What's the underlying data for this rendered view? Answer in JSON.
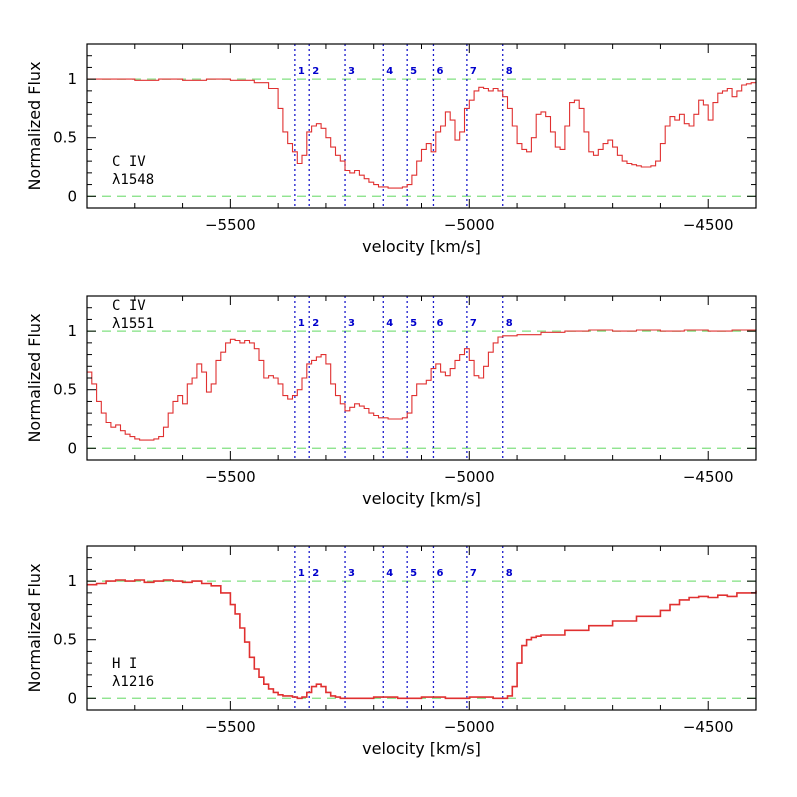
{
  "colors": {
    "flux": "#e03030",
    "reference": "#80e080",
    "components": "#1a1acc",
    "axes": "#000000"
  },
  "chart_data": [
    {
      "type": "line",
      "panel": "C IV 1548",
      "ion": "C IV",
      "line_label": "λ1548",
      "xlabel": "velocity [km/s]",
      "ylabel": "Normalized Flux",
      "xlim": [
        -5800,
        -4400
      ],
      "ylim": [
        -0.1,
        1.3
      ],
      "xticks": [
        -5500,
        -5000,
        -4500
      ],
      "yticks": [
        0,
        0.5,
        1
      ],
      "reference_levels": [
        0,
        1
      ],
      "components": [
        {
          "label": "1",
          "v": -5365
        },
        {
          "label": "2",
          "v": -5335
        },
        {
          "label": "3",
          "v": -5260
        },
        {
          "label": "4",
          "v": -5180
        },
        {
          "label": "5",
          "v": -5130
        },
        {
          "label": "6",
          "v": -5075
        },
        {
          "label": "7",
          "v": -5005
        },
        {
          "label": "8",
          "v": -4930
        }
      ],
      "x": [
        -5800,
        -5750,
        -5700,
        -5650,
        -5600,
        -5550,
        -5500,
        -5450,
        -5420,
        -5400,
        -5390,
        -5380,
        -5370,
        -5360,
        -5350,
        -5340,
        -5330,
        -5320,
        -5310,
        -5300,
        -5290,
        -5280,
        -5270,
        -5260,
        -5250,
        -5240,
        -5230,
        -5220,
        -5210,
        -5200,
        -5190,
        -5180,
        -5170,
        -5160,
        -5150,
        -5140,
        -5130,
        -5120,
        -5110,
        -5100,
        -5090,
        -5080,
        -5070,
        -5060,
        -5050,
        -5040,
        -5030,
        -5020,
        -5010,
        -5000,
        -4990,
        -4980,
        -4970,
        -4960,
        -4950,
        -4940,
        -4930,
        -4920,
        -4910,
        -4900,
        -4890,
        -4880,
        -4870,
        -4860,
        -4850,
        -4840,
        -4830,
        -4820,
        -4810,
        -4800,
        -4790,
        -4780,
        -4770,
        -4760,
        -4750,
        -4740,
        -4730,
        -4720,
        -4710,
        -4700,
        -4690,
        -4680,
        -4670,
        -4660,
        -4650,
        -4640,
        -4630,
        -4620,
        -4610,
        -4600,
        -4590,
        -4580,
        -4570,
        -4560,
        -4550,
        -4540,
        -4530,
        -4520,
        -4510,
        -4500,
        -4490,
        -4480,
        -4470,
        -4460,
        -4450,
        -4440,
        -4430,
        -4420,
        -4410,
        -4400
      ],
      "y": [
        1.0,
        1.0,
        0.99,
        1.0,
        0.99,
        1.0,
        0.99,
        0.97,
        0.92,
        0.75,
        0.55,
        0.45,
        0.38,
        0.28,
        0.35,
        0.55,
        0.6,
        0.62,
        0.58,
        0.5,
        0.42,
        0.35,
        0.3,
        0.22,
        0.2,
        0.22,
        0.18,
        0.15,
        0.12,
        0.1,
        0.08,
        0.08,
        0.07,
        0.07,
        0.07,
        0.08,
        0.1,
        0.18,
        0.3,
        0.4,
        0.45,
        0.38,
        0.55,
        0.6,
        0.72,
        0.65,
        0.48,
        0.55,
        0.75,
        0.82,
        0.9,
        0.93,
        0.92,
        0.9,
        0.92,
        0.9,
        0.85,
        0.75,
        0.6,
        0.45,
        0.4,
        0.38,
        0.5,
        0.7,
        0.72,
        0.68,
        0.55,
        0.42,
        0.4,
        0.6,
        0.8,
        0.82,
        0.75,
        0.55,
        0.38,
        0.35,
        0.4,
        0.45,
        0.48,
        0.42,
        0.35,
        0.3,
        0.28,
        0.27,
        0.26,
        0.25,
        0.25,
        0.26,
        0.3,
        0.45,
        0.6,
        0.68,
        0.65,
        0.7,
        0.62,
        0.6,
        0.7,
        0.82,
        0.78,
        0.65,
        0.8,
        0.88,
        0.9,
        0.92,
        0.85,
        0.9,
        0.95,
        0.96,
        0.97,
        0.98
      ]
    },
    {
      "type": "line",
      "panel": "C IV 1551",
      "ion": "C IV",
      "line_label": "λ1551",
      "xlabel": "velocity [km/s]",
      "ylabel": "Normalized Flux",
      "xlim": [
        -5800,
        -4400
      ],
      "ylim": [
        -0.1,
        1.3
      ],
      "xticks": [
        -5500,
        -5000,
        -4500
      ],
      "yticks": [
        0,
        0.5,
        1
      ],
      "reference_levels": [
        0,
        1
      ],
      "components": [
        {
          "label": "1",
          "v": -5365
        },
        {
          "label": "2",
          "v": -5335
        },
        {
          "label": "3",
          "v": -5260
        },
        {
          "label": "4",
          "v": -5180
        },
        {
          "label": "5",
          "v": -5130
        },
        {
          "label": "6",
          "v": -5075
        },
        {
          "label": "7",
          "v": -5005
        },
        {
          "label": "8",
          "v": -4930
        }
      ],
      "x": [
        -5800,
        -5790,
        -5780,
        -5770,
        -5760,
        -5750,
        -5740,
        -5730,
        -5720,
        -5710,
        -5700,
        -5690,
        -5680,
        -5670,
        -5660,
        -5650,
        -5640,
        -5630,
        -5620,
        -5610,
        -5600,
        -5590,
        -5580,
        -5570,
        -5560,
        -5550,
        -5540,
        -5530,
        -5520,
        -5510,
        -5500,
        -5490,
        -5480,
        -5470,
        -5460,
        -5450,
        -5440,
        -5430,
        -5420,
        -5410,
        -5400,
        -5390,
        -5380,
        -5370,
        -5360,
        -5350,
        -5340,
        -5330,
        -5320,
        -5310,
        -5300,
        -5290,
        -5280,
        -5270,
        -5260,
        -5250,
        -5240,
        -5230,
        -5220,
        -5210,
        -5200,
        -5190,
        -5180,
        -5170,
        -5160,
        -5150,
        -5140,
        -5130,
        -5120,
        -5110,
        -5100,
        -5090,
        -5080,
        -5070,
        -5060,
        -5050,
        -5040,
        -5030,
        -5020,
        -5010,
        -5000,
        -4990,
        -4980,
        -4970,
        -4960,
        -4950,
        -4940,
        -4930,
        -4920,
        -4900,
        -4850,
        -4800,
        -4750,
        -4700,
        -4650,
        -4600,
        -4550,
        -4500,
        -4450,
        -4400
      ],
      "y": [
        0.65,
        0.55,
        0.4,
        0.3,
        0.22,
        0.18,
        0.2,
        0.15,
        0.12,
        0.1,
        0.08,
        0.07,
        0.07,
        0.07,
        0.08,
        0.1,
        0.18,
        0.3,
        0.4,
        0.45,
        0.38,
        0.55,
        0.6,
        0.72,
        0.65,
        0.48,
        0.55,
        0.75,
        0.82,
        0.9,
        0.93,
        0.92,
        0.9,
        0.92,
        0.9,
        0.85,
        0.75,
        0.6,
        0.62,
        0.6,
        0.55,
        0.45,
        0.42,
        0.45,
        0.5,
        0.6,
        0.72,
        0.75,
        0.78,
        0.8,
        0.72,
        0.55,
        0.45,
        0.38,
        0.32,
        0.35,
        0.38,
        0.36,
        0.34,
        0.3,
        0.28,
        0.26,
        0.26,
        0.25,
        0.25,
        0.25,
        0.26,
        0.3,
        0.45,
        0.55,
        0.55,
        0.58,
        0.68,
        0.72,
        0.65,
        0.62,
        0.68,
        0.75,
        0.8,
        0.85,
        0.75,
        0.62,
        0.6,
        0.7,
        0.82,
        0.9,
        0.95,
        0.96,
        0.96,
        0.97,
        0.99,
        1.0,
        1.01,
        1.0,
        1.01,
        1.0,
        1.01,
        1.0,
        1.01,
        1.0
      ]
    },
    {
      "type": "line",
      "panel": "H I 1216",
      "ion": "H I",
      "line_label": "λ1216",
      "xlabel": "velocity [km/s]",
      "ylabel": "Normalized Flux",
      "xlim": [
        -5800,
        -4400
      ],
      "ylim": [
        -0.1,
        1.3
      ],
      "xticks": [
        -5500,
        -5000,
        -4500
      ],
      "yticks": [
        0,
        0.5,
        1
      ],
      "reference_levels": [
        0,
        1
      ],
      "components": [
        {
          "label": "1",
          "v": -5365
        },
        {
          "label": "2",
          "v": -5335
        },
        {
          "label": "3",
          "v": -5260
        },
        {
          "label": "4",
          "v": -5180
        },
        {
          "label": "5",
          "v": -5130
        },
        {
          "label": "6",
          "v": -5075
        },
        {
          "label": "7",
          "v": -5005
        },
        {
          "label": "8",
          "v": -4930
        }
      ],
      "x": [
        -5800,
        -5780,
        -5760,
        -5740,
        -5720,
        -5700,
        -5680,
        -5660,
        -5640,
        -5620,
        -5600,
        -5580,
        -5560,
        -5540,
        -5520,
        -5500,
        -5490,
        -5480,
        -5470,
        -5460,
        -5450,
        -5440,
        -5430,
        -5420,
        -5410,
        -5400,
        -5390,
        -5380,
        -5370,
        -5360,
        -5350,
        -5340,
        -5330,
        -5320,
        -5310,
        -5300,
        -5290,
        -5280,
        -5270,
        -5260,
        -5200,
        -5150,
        -5100,
        -5050,
        -5000,
        -4950,
        -4920,
        -4910,
        -4900,
        -4890,
        -4880,
        -4870,
        -4860,
        -4850,
        -4800,
        -4750,
        -4700,
        -4650,
        -4600,
        -4580,
        -4560,
        -4540,
        -4520,
        -4500,
        -4480,
        -4460,
        -4440,
        -4420,
        -4400
      ],
      "y": [
        0.97,
        0.98,
        1.0,
        1.01,
        1.0,
        1.01,
        0.99,
        1.0,
        1.01,
        1.0,
        0.99,
        1.0,
        0.98,
        0.96,
        0.9,
        0.8,
        0.72,
        0.6,
        0.48,
        0.35,
        0.25,
        0.18,
        0.12,
        0.08,
        0.05,
        0.03,
        0.02,
        0.02,
        0.01,
        0.0,
        0.01,
        0.05,
        0.1,
        0.12,
        0.1,
        0.05,
        0.02,
        0.01,
        0.0,
        0.0,
        0.01,
        0.0,
        0.01,
        0.0,
        0.01,
        0.0,
        0.02,
        0.1,
        0.3,
        0.45,
        0.5,
        0.52,
        0.53,
        0.54,
        0.58,
        0.62,
        0.66,
        0.7,
        0.75,
        0.8,
        0.84,
        0.86,
        0.87,
        0.86,
        0.88,
        0.87,
        0.9,
        0.9,
        0.92
      ]
    }
  ]
}
